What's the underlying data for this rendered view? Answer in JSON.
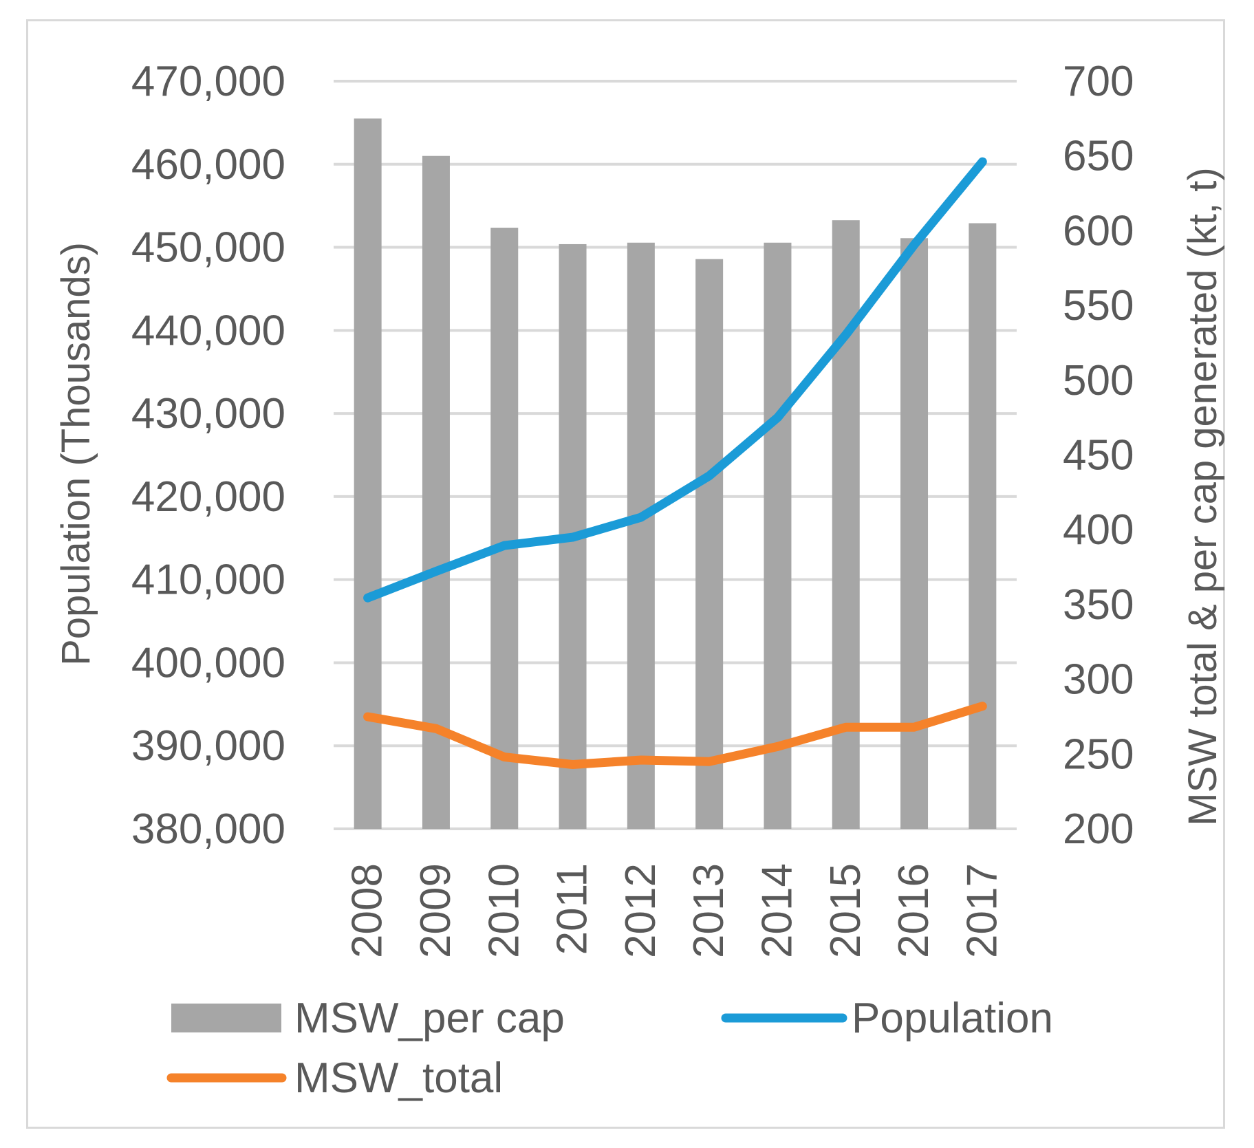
{
  "chart_data": {
    "type": "bar",
    "title": "",
    "categories": [
      "2008",
      "2009",
      "2010",
      "2011",
      "2012",
      "2013",
      "2014",
      "2015",
      "2016",
      "2017"
    ],
    "series": [
      {
        "name": "MSW_per cap",
        "kind": "bar",
        "axis": "right",
        "color": "#a6a6a6",
        "values": [
          675,
          650,
          602,
          591,
          592,
          581,
          592,
          607,
          595,
          605
        ]
      },
      {
        "name": "Population",
        "kind": "line",
        "axis": "left",
        "color": "#1b9bd7",
        "values": [
          407800,
          411000,
          414100,
          415100,
          417500,
          422500,
          429500,
          439500,
          450300,
          460300
        ]
      },
      {
        "name": "MSW_total",
        "kind": "line",
        "axis": "right",
        "color": "#f5822a",
        "values": [
          275,
          267,
          248,
          243,
          246,
          245,
          255,
          268,
          268,
          282
        ]
      }
    ],
    "y_left": {
      "label": "Population (Thousands)",
      "ylim": [
        380000,
        470000
      ],
      "ticks": [
        "380,000",
        "390,000",
        "400,000",
        "410,000",
        "420,000",
        "430,000",
        "440,000",
        "450,000",
        "460,000",
        "470,000"
      ]
    },
    "y_right": {
      "label": "MSW total & per cap generated (kt, t)",
      "ylim": [
        200,
        700
      ],
      "ticks": [
        "200",
        "250",
        "300",
        "350",
        "400",
        "450",
        "500",
        "550",
        "600",
        "650",
        "700"
      ]
    },
    "grid": true,
    "legend_position": "bottom"
  }
}
